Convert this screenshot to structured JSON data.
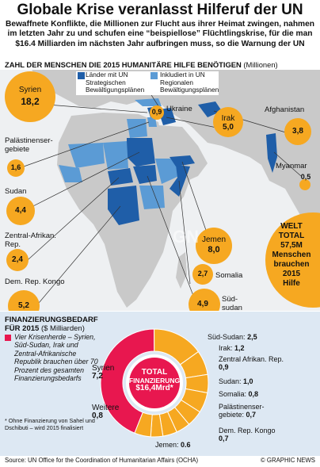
{
  "title": "Globale Krise veranlasst Hilferuf der UN",
  "intro": "Bewaffnete Konflikte, die Millionen zur Flucht aus ihrer Heimat zwingen, nahmen im letzten Jahr zu und schufen eine “beispiellose” Flüchtlingskrise, für die man $16.4 Milliarden im nächsten Jahr aufbringen muss, so die Warnung der UN",
  "subhead": {
    "main": "ZAHL DER MENSCHEN DIE 2015 HUMANITÄRE HILFE BENÖTIGEN",
    "unit": " (Millionen)"
  },
  "legend": {
    "strategic": {
      "label": "Länder mit UN Strategischen Bewältigungsplänen",
      "color": "#1f5ea8"
    },
    "regional": {
      "label": "Inkludiert in UN Regionalen Bewältigungsplänen",
      "color": "#5b9bd5"
    }
  },
  "countries": [
    {
      "name": "Syrien",
      "value": "18,2"
    },
    {
      "name": "Ukraine",
      "value": "0,9"
    },
    {
      "name": "Irak",
      "value": "5,0"
    },
    {
      "name": "Afghanistan",
      "value": "3,8"
    },
    {
      "name": "Palästinenser-gebiete",
      "value": "1,6"
    },
    {
      "name": "Myanmar",
      "value": "0,5"
    },
    {
      "name": "Sudan",
      "value": "4,4"
    },
    {
      "name": "Zentral-Afrikan. Rep.",
      "value": "2,4"
    },
    {
      "name": "Jemen",
      "value": "8,0"
    },
    {
      "name": "Somalia",
      "value": "2,7"
    },
    {
      "name": "Dem. Rep. Kongo",
      "value": "5,2"
    },
    {
      "name": "Süd-sudan",
      "value": "4,9"
    }
  ],
  "world_total": {
    "line1": "WELT",
    "line2": "TOTAL",
    "line3": "57,5M",
    "line4": "Menschen",
    "line5": "brauchen",
    "line6": "2015",
    "line7": "Hilfe"
  },
  "finance": {
    "head": "FINANZIERUNGSBEDARF",
    "head2": "FÜR 2015",
    "unit": " ($ Milliarden)",
    "note": "Vier Krisenherde – Syrien, Süd-Sudan, Irak und Zentral-Afrikanische Republik brauchen über 70 Prozent des gesamten Finanzierungsbedarfs",
    "footnote": "* Ohne Finanzierung von Sahel und Dschibuti – wird 2015 finalisiert",
    "center": {
      "line1": "TOTAL",
      "line2": "FINANZIERUNG",
      "line3": "$16,4Mrd*"
    },
    "items": [
      {
        "name": "Syrien",
        "value": "7,2",
        "color": "#e8174f"
      },
      {
        "name": "Süd-Sudan:",
        "value": "2,5",
        "color": "#f6a821"
      },
      {
        "name": "Irak:",
        "value": "1,2",
        "color": "#f6a821"
      },
      {
        "name": "Zentral Afrikan. Rep.",
        "value": "0,9",
        "color": "#f6a821"
      },
      {
        "name": "Sudan:",
        "value": "1,0",
        "color": "#f6a821"
      },
      {
        "name": "Somalia:",
        "value": "0,8",
        "color": "#f6a821"
      },
      {
        "name": "Palästinenser-gebiete:",
        "value": "0,7",
        "color": "#f6a821"
      },
      {
        "name": "Dem. Rep. Kongo",
        "value": "0,7",
        "color": "#f6a821"
      },
      {
        "name": "Jemen:",
        "value": "0.6",
        "color": "#f6a821"
      },
      {
        "name": "Weitere",
        "value": "0,8",
        "color": "#f6a821"
      }
    ]
  },
  "source": "Source: UN Office for the Coordination of Humanitarian Affairs (OCHA)",
  "credit": "© GRAPHIC NEWS",
  "colors": {
    "orange": "#f6a821",
    "red": "#e8174f",
    "blue_dark": "#1f5ea8",
    "blue_light": "#5b9bd5",
    "land": "#c9c9c9",
    "sea": "#f0f0f0"
  }
}
